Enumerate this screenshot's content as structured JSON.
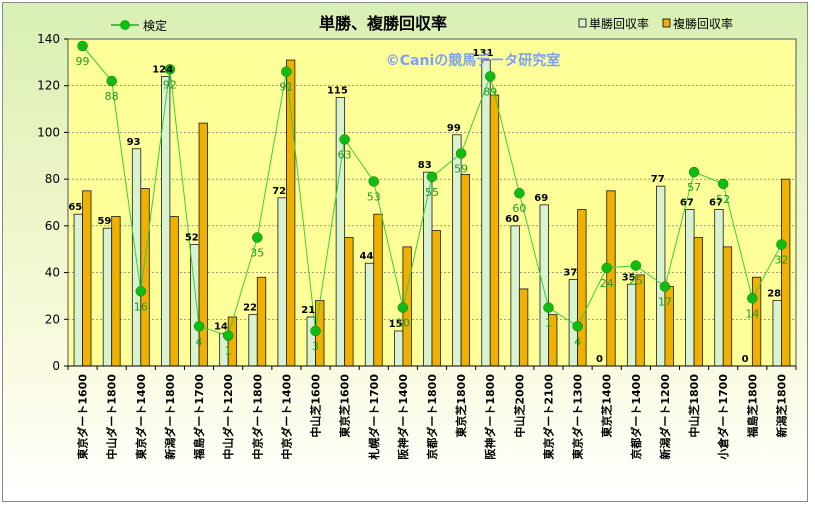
{
  "chart_data": {
    "type": "bar",
    "title": "単勝、複勝回収率",
    "watermark": "©Caniの競馬データ研究室",
    "ylim": [
      0,
      140
    ],
    "yticks": [
      0,
      20,
      40,
      60,
      80,
      100,
      120,
      140
    ],
    "categories": [
      "東京ダート1600",
      "中山ダート1800",
      "東京ダート1400",
      "新潟ダート1800",
      "福島ダート1700",
      "中山ダート1200",
      "中京ダート1800",
      "中京ダート1400",
      "中山芝1600",
      "東京芝1600",
      "札幌ダート1700",
      "阪神ダート1400",
      "京都ダート1800",
      "東京芝1800",
      "阪神ダート1800",
      "中山芝2000",
      "東京ダート2100",
      "東京ダート1300",
      "東京芝1400",
      "京都ダート1400",
      "新潟ダート1200",
      "中山芝1800",
      "小倉ダート1700",
      "福島芝1800",
      "新潟芝1800"
    ],
    "series": [
      {
        "name": "単勝回収率",
        "kind": "bar",
        "color": "#d9f2d0",
        "values": [
          65,
          59,
          93,
          124,
          52,
          14,
          22,
          72,
          21,
          115,
          44,
          15,
          83,
          99,
          131,
          60,
          69,
          37,
          0,
          35,
          77,
          67,
          67,
          0,
          28
        ],
        "labels": [
          "65",
          "59",
          "93",
          "124",
          "52",
          "14",
          "22",
          "72",
          "21",
          "115",
          "44",
          "15",
          "83",
          "99",
          "131",
          "60",
          "69",
          "37",
          "0",
          "35",
          "77",
          "67",
          "67",
          "0",
          "28"
        ]
      },
      {
        "name": "複勝回収率",
        "kind": "bar",
        "color": "#f0b000",
        "values": [
          75,
          64,
          76,
          64,
          104,
          21,
          38,
          131,
          28,
          55,
          65,
          51,
          58,
          82,
          116,
          33,
          22,
          67,
          75,
          39,
          34,
          55,
          51,
          38,
          80
        ]
      },
      {
        "name": "検定",
        "kind": "line",
        "color": "#22a822",
        "values": [
          137,
          122,
          32,
          127,
          17,
          13,
          55,
          126,
          15,
          97,
          79,
          25,
          81,
          91,
          124,
          74,
          25,
          17,
          42,
          43,
          34,
          83,
          78,
          29,
          52
        ],
        "labels": [
          "99",
          "88",
          "16",
          "92",
          "4",
          "1",
          "35",
          "91",
          "3",
          "63",
          "53",
          "10",
          "55",
          "59",
          "89",
          "60",
          "1",
          "4",
          "24",
          "25",
          "17",
          "57",
          "52",
          "14",
          "32"
        ]
      }
    ]
  }
}
